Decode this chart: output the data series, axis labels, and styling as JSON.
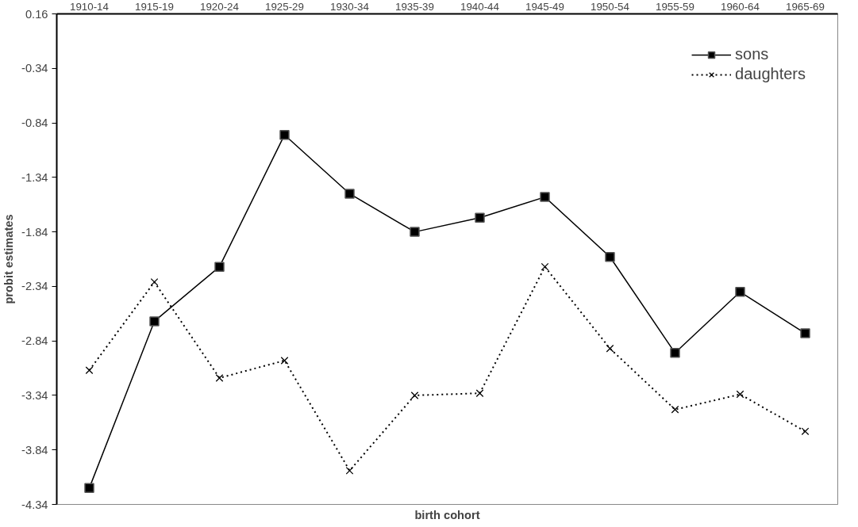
{
  "chart_data": {
    "type": "line",
    "xlabel": "birth cohort",
    "ylabel": "probit estimates",
    "categories": [
      "1910-14",
      "1915-19",
      "1920-24",
      "1925-29",
      "1930-34",
      "1935-39",
      "1940-44",
      "1945-49",
      "1950-54",
      "1955-59",
      "1960-64",
      "1965-69"
    ],
    "series": [
      {
        "name": "sons",
        "color": "#000000",
        "marker": "square",
        "line_style": "solid",
        "values": [
          -4.19,
          -2.66,
          -2.16,
          -0.95,
          -1.49,
          -1.84,
          -1.71,
          -1.52,
          -2.07,
          -2.95,
          -2.39,
          -2.77
        ]
      },
      {
        "name": "daughters",
        "color": "#000000",
        "marker": "cross",
        "line_style": "dotted",
        "values": [
          -3.11,
          -2.3,
          -3.18,
          -3.02,
          -4.03,
          -3.34,
          -3.32,
          -2.16,
          -2.91,
          -3.47,
          -3.33,
          -3.67
        ]
      }
    ],
    "ylim": [
      -4.34,
      0.16
    ],
    "yticks": [
      -4.34,
      -3.84,
      -3.34,
      -2.84,
      -2.34,
      -1.84,
      -1.34,
      -0.84,
      -0.34,
      0.16
    ],
    "grid": false,
    "legend": "top right"
  }
}
